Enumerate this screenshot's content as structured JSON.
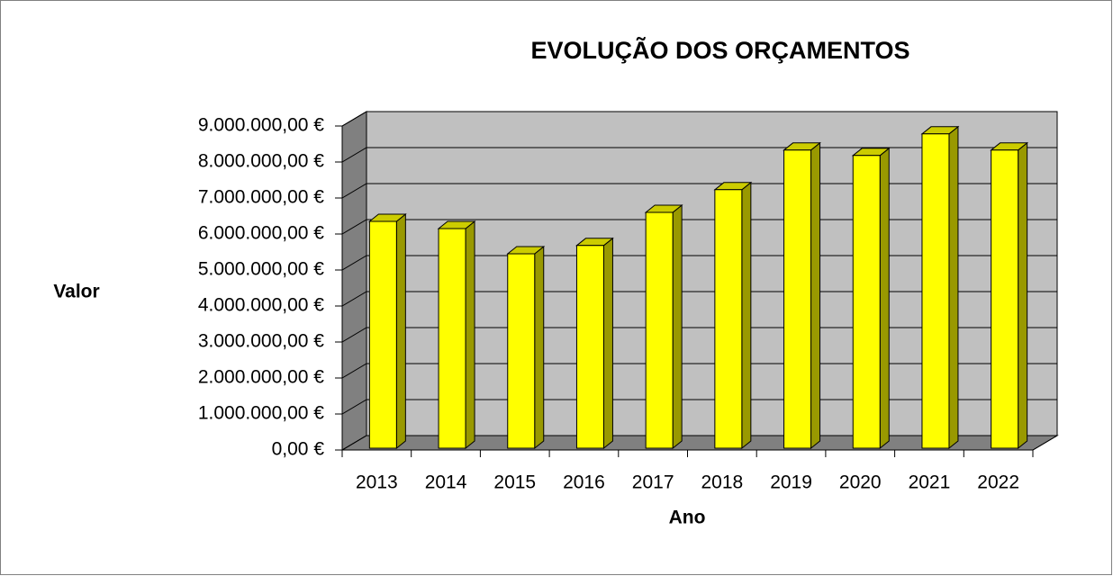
{
  "chart_data": {
    "type": "bar3d",
    "title": "EVOLUÇÃO DOS ORÇAMENTOS",
    "x_label": "Ano",
    "y_label": "Valor",
    "categories": [
      "2013",
      "2014",
      "2015",
      "2016",
      "2017",
      "2018",
      "2019",
      "2020",
      "2021",
      "2022"
    ],
    "values": [
      6350000,
      6150000,
      5450000,
      5680000,
      6600000,
      7230000,
      8330000,
      8180000,
      8780000,
      8330000
    ],
    "color": "#ffff00",
    "ylim": [
      0,
      9000000
    ],
    "yticks": [
      {
        "value": 0,
        "label": "0,00 €"
      },
      {
        "value": 1000000,
        "label": "1.000.000,00 €"
      },
      {
        "value": 2000000,
        "label": "2.000.000,00 €"
      },
      {
        "value": 3000000,
        "label": "3.000.000,00 €"
      },
      {
        "value": 4000000,
        "label": "4.000.000,00 €"
      },
      {
        "value": 5000000,
        "label": "5.000.000,00 €"
      },
      {
        "value": 6000000,
        "label": "6.000.000,00 €"
      },
      {
        "value": 7000000,
        "label": "7.000.000,00 €"
      },
      {
        "value": 8000000,
        "label": "8.000.000,00 €"
      },
      {
        "value": 9000000,
        "label": "9.000.000,00 €"
      }
    ],
    "grid": true
  }
}
